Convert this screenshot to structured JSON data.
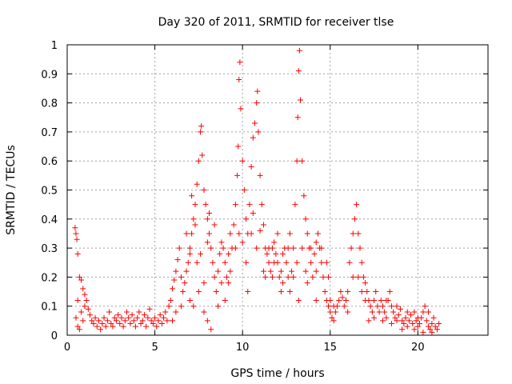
{
  "chart_data": {
    "type": "scatter",
    "title": "Day 320 of 2011, SRMTID for receiver tlse",
    "xlabel": "GPS time / hours",
    "ylabel": "SRMTID / TECUs",
    "xlim": [
      0,
      24
    ],
    "ylim": [
      0,
      1
    ],
    "xticks": [
      0,
      5,
      10,
      15,
      20
    ],
    "xtick_labels": [
      "0",
      "5",
      "10",
      "15",
      "20"
    ],
    "yticks": [
      0,
      0.1,
      0.2,
      0.3,
      0.4,
      0.5,
      0.6,
      0.7,
      0.8,
      0.9,
      1
    ],
    "ytick_labels": [
      "0",
      "0.1",
      "0.2",
      "0.3",
      "0.4",
      "0.5",
      "0.6",
      "0.7",
      "0.8",
      "0.9",
      "1"
    ],
    "grid": true,
    "marker": "+",
    "color": "#ff0000",
    "series": [
      {
        "name": "SRMTID",
        "points": [
          [
            0.45,
            0.37
          ],
          [
            0.5,
            0.35
          ],
          [
            0.55,
            0.33
          ],
          [
            0.6,
            0.28
          ],
          [
            0.6,
            0.12
          ],
          [
            0.7,
            0.2
          ],
          [
            0.8,
            0.19
          ],
          [
            0.9,
            0.16
          ],
          [
            1.0,
            0.14
          ],
          [
            1.1,
            0.12
          ],
          [
            0.5,
            0.06
          ],
          [
            0.6,
            0.03
          ],
          [
            0.7,
            0.02
          ],
          [
            0.8,
            0.08
          ],
          [
            0.9,
            0.05
          ],
          [
            1.0,
            0.1
          ],
          [
            1.2,
            0.09
          ],
          [
            1.3,
            0.07
          ],
          [
            1.4,
            0.05
          ],
          [
            1.5,
            0.04
          ],
          [
            1.6,
            0.06
          ],
          [
            1.7,
            0.03
          ],
          [
            1.8,
            0.05
          ],
          [
            1.9,
            0.02
          ],
          [
            2.0,
            0.04
          ],
          [
            2.1,
            0.06
          ],
          [
            2.2,
            0.03
          ],
          [
            2.3,
            0.05
          ],
          [
            2.4,
            0.08
          ],
          [
            2.5,
            0.04
          ],
          [
            2.6,
            0.03
          ],
          [
            2.7,
            0.06
          ],
          [
            2.8,
            0.05
          ],
          [
            2.9,
            0.07
          ],
          [
            3.0,
            0.04
          ],
          [
            3.1,
            0.06
          ],
          [
            3.2,
            0.03
          ],
          [
            3.3,
            0.05
          ],
          [
            3.4,
            0.08
          ],
          [
            3.5,
            0.06
          ],
          [
            3.6,
            0.04
          ],
          [
            3.7,
            0.07
          ],
          [
            3.8,
            0.05
          ],
          [
            3.9,
            0.03
          ],
          [
            4.0,
            0.06
          ],
          [
            4.1,
            0.08
          ],
          [
            4.2,
            0.04
          ],
          [
            4.3,
            0.05
          ],
          [
            4.4,
            0.07
          ],
          [
            4.5,
            0.03
          ],
          [
            4.6,
            0.06
          ],
          [
            4.7,
            0.09
          ],
          [
            4.8,
            0.05
          ],
          [
            4.9,
            0.04
          ],
          [
            5.0,
            0.06
          ],
          [
            5.1,
            0.03
          ],
          [
            5.2,
            0.05
          ],
          [
            5.3,
            0.07
          ],
          [
            5.4,
            0.04
          ],
          [
            5.5,
            0.06
          ],
          [
            5.6,
            0.08
          ],
          [
            5.7,
            0.05
          ],
          [
            5.8,
            0.1
          ],
          [
            5.9,
            0.12
          ],
          [
            6.0,
            0.16
          ],
          [
            6.1,
            0.19
          ],
          [
            6.2,
            0.22
          ],
          [
            6.3,
            0.26
          ],
          [
            6.4,
            0.3
          ],
          [
            6.5,
            0.2
          ],
          [
            6.6,
            0.15
          ],
          [
            6.7,
            0.18
          ],
          [
            6.8,
            0.22
          ],
          [
            6.9,
            0.25
          ],
          [
            7.0,
            0.28
          ],
          [
            7.1,
            0.35
          ],
          [
            7.2,
            0.4
          ],
          [
            7.3,
            0.45
          ],
          [
            7.4,
            0.52
          ],
          [
            7.5,
            0.6
          ],
          [
            7.6,
            0.7
          ],
          [
            7.65,
            0.72
          ],
          [
            7.7,
            0.62
          ],
          [
            7.8,
            0.5
          ],
          [
            7.9,
            0.45
          ],
          [
            8.0,
            0.4
          ],
          [
            8.1,
            0.35
          ],
          [
            8.2,
            0.3
          ],
          [
            8.3,
            0.25
          ],
          [
            8.4,
            0.2
          ],
          [
            7.0,
            0.12
          ],
          [
            7.2,
            0.1
          ],
          [
            7.5,
            0.15
          ],
          [
            7.8,
            0.08
          ],
          [
            8.0,
            0.05
          ],
          [
            8.2,
            0.02
          ],
          [
            8.5,
            0.15
          ],
          [
            8.6,
            0.22
          ],
          [
            8.7,
            0.28
          ],
          [
            8.8,
            0.32
          ],
          [
            8.9,
            0.3
          ],
          [
            9.0,
            0.25
          ],
          [
            9.1,
            0.2
          ],
          [
            9.2,
            0.18
          ],
          [
            9.3,
            0.22
          ],
          [
            9.4,
            0.3
          ],
          [
            9.5,
            0.38
          ],
          [
            9.6,
            0.45
          ],
          [
            9.7,
            0.55
          ],
          [
            9.75,
            0.65
          ],
          [
            9.8,
            0.88
          ],
          [
            9.85,
            0.94
          ],
          [
            9.9,
            0.78
          ],
          [
            10.0,
            0.6
          ],
          [
            10.1,
            0.5
          ],
          [
            10.2,
            0.4
          ],
          [
            10.3,
            0.35
          ],
          [
            10.4,
            0.45
          ],
          [
            10.5,
            0.58
          ],
          [
            10.6,
            0.68
          ],
          [
            10.7,
            0.73
          ],
          [
            10.8,
            0.8
          ],
          [
            10.85,
            0.84
          ],
          [
            10.9,
            0.7
          ],
          [
            11.0,
            0.55
          ],
          [
            11.1,
            0.45
          ],
          [
            11.2,
            0.38
          ],
          [
            11.3,
            0.3
          ],
          [
            11.4,
            0.28
          ],
          [
            11.5,
            0.25
          ],
          [
            11.6,
            0.22
          ],
          [
            11.7,
            0.3
          ],
          [
            11.8,
            0.32
          ],
          [
            11.9,
            0.28
          ],
          [
            12.0,
            0.25
          ],
          [
            12.1,
            0.2
          ],
          [
            12.2,
            0.22
          ],
          [
            12.3,
            0.28
          ],
          [
            12.4,
            0.3
          ],
          [
            12.5,
            0.25
          ],
          [
            12.6,
            0.2
          ],
          [
            12.7,
            0.15
          ],
          [
            12.8,
            0.22
          ],
          [
            12.9,
            0.3
          ],
          [
            13.0,
            0.45
          ],
          [
            13.1,
            0.6
          ],
          [
            13.15,
            0.75
          ],
          [
            13.2,
            0.91
          ],
          [
            13.25,
            0.98
          ],
          [
            13.3,
            0.81
          ],
          [
            13.4,
            0.6
          ],
          [
            13.5,
            0.48
          ],
          [
            13.6,
            0.4
          ],
          [
            13.7,
            0.35
          ],
          [
            13.8,
            0.3
          ],
          [
            13.9,
            0.25
          ],
          [
            14.0,
            0.2
          ],
          [
            14.1,
            0.28
          ],
          [
            14.2,
            0.32
          ],
          [
            14.3,
            0.35
          ],
          [
            14.4,
            0.3
          ],
          [
            14.5,
            0.25
          ],
          [
            14.6,
            0.2
          ],
          [
            14.7,
            0.15
          ],
          [
            14.8,
            0.12
          ],
          [
            14.9,
            0.1
          ],
          [
            15.0,
            0.08
          ],
          [
            15.1,
            0.06
          ],
          [
            15.2,
            0.05
          ],
          [
            15.3,
            0.08
          ],
          [
            15.4,
            0.1
          ],
          [
            15.5,
            0.12
          ],
          [
            15.6,
            0.15
          ],
          [
            15.7,
            0.13
          ],
          [
            15.8,
            0.1
          ],
          [
            15.9,
            0.12
          ],
          [
            16.0,
            0.15
          ],
          [
            16.1,
            0.25
          ],
          [
            16.2,
            0.3
          ],
          [
            16.3,
            0.35
          ],
          [
            16.4,
            0.4
          ],
          [
            16.5,
            0.45
          ],
          [
            16.6,
            0.35
          ],
          [
            16.7,
            0.3
          ],
          [
            16.8,
            0.25
          ],
          [
            16.9,
            0.2
          ],
          [
            17.0,
            0.18
          ],
          [
            17.1,
            0.15
          ],
          [
            17.2,
            0.12
          ],
          [
            17.3,
            0.1
          ],
          [
            17.4,
            0.08
          ],
          [
            17.5,
            0.12
          ],
          [
            17.6,
            0.15
          ],
          [
            17.7,
            0.1
          ],
          [
            17.8,
            0.08
          ],
          [
            17.9,
            0.12
          ],
          [
            18.0,
            0.1
          ],
          [
            18.1,
            0.08
          ],
          [
            18.2,
            0.06
          ],
          [
            18.3,
            0.12
          ],
          [
            18.4,
            0.15
          ],
          [
            18.5,
            0.1
          ],
          [
            18.6,
            0.08
          ],
          [
            18.7,
            0.06
          ],
          [
            18.8,
            0.05
          ],
          [
            18.9,
            0.07
          ],
          [
            19.0,
            0.09
          ],
          [
            19.1,
            0.05
          ],
          [
            19.2,
            0.04
          ],
          [
            19.3,
            0.06
          ],
          [
            19.4,
            0.03
          ],
          [
            19.5,
            0.05
          ],
          [
            19.6,
            0.07
          ],
          [
            19.7,
            0.04
          ],
          [
            19.8,
            0.02
          ],
          [
            19.9,
            0.05
          ],
          [
            20.0,
            0.03
          ],
          [
            20.1,
            0.04
          ],
          [
            20.2,
            0.06
          ],
          [
            20.3,
            0.08
          ],
          [
            20.4,
            0.1
          ],
          [
            20.5,
            0.05
          ],
          [
            20.6,
            0.03
          ],
          [
            20.7,
            0.02
          ],
          [
            20.8,
            0.04
          ],
          [
            20.9,
            0.06
          ],
          [
            21.0,
            0.03
          ],
          [
            21.1,
            0.02
          ],
          [
            21.2,
            0.04
          ],
          [
            6.8,
            0.35
          ],
          [
            7.0,
            0.3
          ],
          [
            7.3,
            0.38
          ],
          [
            7.6,
            0.28
          ],
          [
            8.1,
            0.42
          ],
          [
            8.4,
            0.38
          ],
          [
            8.8,
            0.18
          ],
          [
            9.0,
            0.12
          ],
          [
            9.3,
            0.35
          ],
          [
            9.6,
            0.3
          ],
          [
            10.0,
            0.32
          ],
          [
            10.2,
            0.25
          ],
          [
            10.5,
            0.35
          ],
          [
            10.8,
            0.3
          ],
          [
            11.0,
            0.36
          ],
          [
            11.3,
            0.2
          ],
          [
            11.5,
            0.3
          ],
          [
            11.8,
            0.25
          ],
          [
            12.0,
            0.35
          ],
          [
            12.3,
            0.18
          ],
          [
            12.6,
            0.3
          ],
          [
            12.9,
            0.2
          ],
          [
            13.1,
            0.25
          ],
          [
            13.4,
            0.3
          ],
          [
            13.6,
            0.22
          ],
          [
            13.9,
            0.3
          ],
          [
            14.2,
            0.22
          ],
          [
            14.5,
            0.3
          ],
          [
            14.8,
            0.25
          ],
          [
            15.0,
            0.12
          ],
          [
            16.3,
            0.2
          ],
          [
            16.6,
            0.2
          ],
          [
            17.0,
            0.12
          ],
          [
            17.5,
            0.06
          ],
          [
            18.2,
            0.12
          ],
          [
            18.8,
            0.1
          ],
          [
            19.4,
            0.08
          ],
          [
            20.0,
            0.06
          ],
          [
            20.6,
            0.08
          ],
          [
            6.0,
            0.05
          ],
          [
            6.2,
            0.08
          ],
          [
            6.5,
            0.1
          ],
          [
            7.8,
            0.18
          ],
          [
            8.6,
            0.1
          ],
          [
            9.8,
            0.35
          ],
          [
            10.3,
            0.15
          ],
          [
            11.2,
            0.22
          ],
          [
            12.2,
            0.15
          ],
          [
            13.2,
            0.12
          ],
          [
            14.2,
            0.12
          ],
          [
            15.2,
            0.1
          ],
          [
            16.0,
            0.08
          ],
          [
            17.2,
            0.05
          ],
          [
            18.5,
            0.04
          ],
          [
            19.8,
            0.08
          ],
          [
            20.8,
            0.01
          ],
          [
            7.1,
            0.48
          ],
          [
            7.4,
            0.25
          ],
          [
            8.0,
            0.32
          ],
          [
            9.2,
            0.28
          ],
          [
            10.6,
            0.42
          ],
          [
            11.7,
            0.2
          ],
          [
            12.7,
            0.35
          ],
          [
            13.7,
            0.18
          ],
          [
            14.9,
            0.2
          ],
          [
            16.8,
            0.15
          ],
          [
            18.0,
            0.05
          ],
          [
            19.1,
            0.02
          ],
          [
            20.3,
            0.01
          ]
        ]
      }
    ]
  }
}
